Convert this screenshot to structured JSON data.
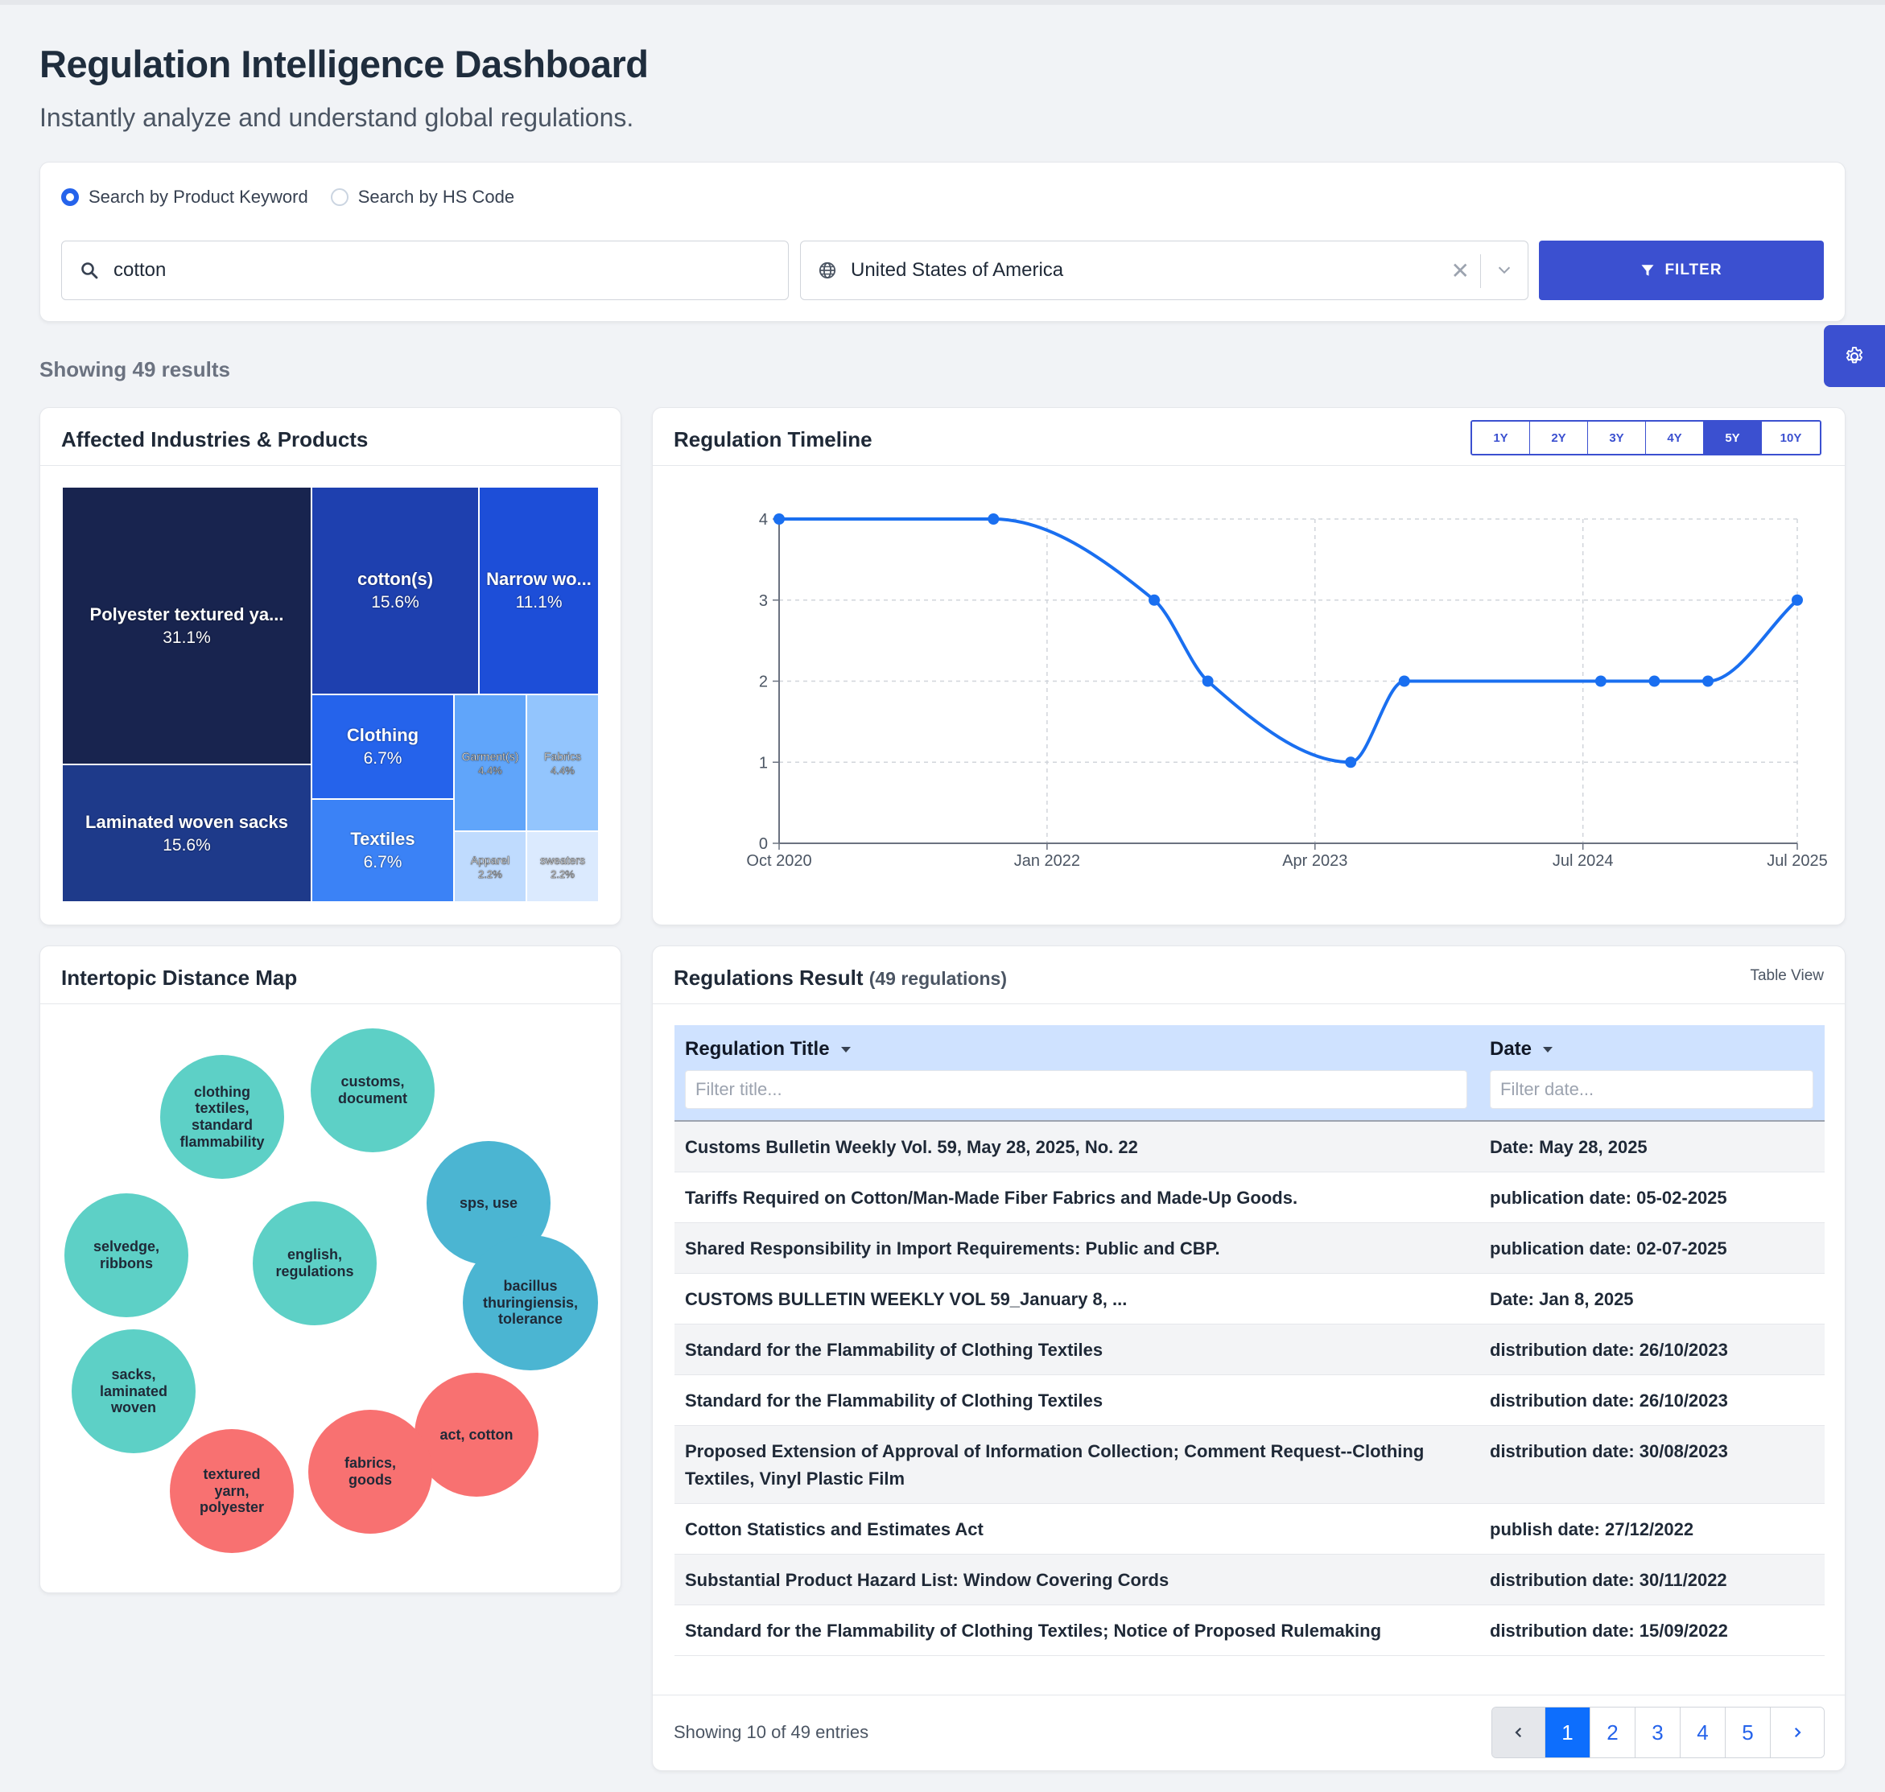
{
  "header": {
    "title": "Regulation Intelligence Dashboard",
    "subtitle": "Instantly analyze and understand global regulations."
  },
  "search": {
    "mode_keyword_label": "Search by Product Keyword",
    "mode_hs_label": "Search by HS Code",
    "selected_mode": "keyword",
    "keyword_value": "cotton",
    "country_value": "United States of America",
    "filter_label": "FILTER"
  },
  "results_summary": "Showing 49 results",
  "colors": {
    "primary": "#3b50d0",
    "accent_blue": "#0d6efd",
    "teal": "#5dd0c6",
    "blue_bubble": "#4bb5d2",
    "red_bubble": "#f87171"
  },
  "treemap": {
    "title": "Affected Industries & Products",
    "items": [
      {
        "name": "Polyester textured ya...",
        "pct": "31.1%",
        "color": "#18244f"
      },
      {
        "name": "Laminated woven sacks",
        "pct": "15.6%",
        "color": "#1e3a8a"
      },
      {
        "name": "cotton(s)",
        "pct": "15.6%",
        "color": "#1e40af"
      },
      {
        "name": "Narrow wo...",
        "pct": "11.1%",
        "color": "#1d4ed8"
      },
      {
        "name": "Clothing",
        "pct": "6.7%",
        "color": "#2563eb"
      },
      {
        "name": "Textiles",
        "pct": "6.7%",
        "color": "#3b82f6"
      },
      {
        "name": "Garment(s)",
        "pct": "4.4%",
        "color": "#60a5fa"
      },
      {
        "name": "Fabrics",
        "pct": "4.4%",
        "color": "#93c5fd"
      },
      {
        "name": "Apparel",
        "pct": "2.2%",
        "color": "#bfdbfe"
      },
      {
        "name": "sweaters",
        "pct": "2.2%",
        "color": "#dbeafe"
      }
    ]
  },
  "timeline": {
    "title": "Regulation Timeline",
    "ranges": [
      "1Y",
      "2Y",
      "3Y",
      "4Y",
      "5Y",
      "10Y"
    ],
    "active_range": "5Y"
  },
  "chart_data": {
    "type": "line",
    "title": "Regulation Timeline",
    "x_tick_labels": [
      "Oct 2020",
      "Jan 2022",
      "Apr 2023",
      "Jul 2024",
      "Jul 2025"
    ],
    "y_ticks": [
      0,
      1,
      2,
      3,
      4
    ],
    "ylim": [
      0,
      4
    ],
    "xlim": [
      "2020-10",
      "2025-07"
    ],
    "grid": true,
    "series": [
      {
        "points": [
          {
            "x": "2020-10",
            "y": 4
          },
          {
            "x": "2021-10",
            "y": 4
          },
          {
            "x": "2022-07",
            "y": 3
          },
          {
            "x": "2022-10",
            "y": 2
          },
          {
            "x": "2023-06",
            "y": 1
          },
          {
            "x": "2023-09",
            "y": 2
          },
          {
            "x": "2024-08",
            "y": 2
          },
          {
            "x": "2024-11",
            "y": 2
          },
          {
            "x": "2025-02",
            "y": 2
          },
          {
            "x": "2025-07",
            "y": 3
          }
        ],
        "color": "#1a6ff0"
      }
    ]
  },
  "topic_map": {
    "title": "Intertopic Distance Map",
    "topics": [
      {
        "label": "clothing textiles, standard flammability",
        "color": "teal"
      },
      {
        "label": "customs, document",
        "color": "teal"
      },
      {
        "label": "sps, use",
        "color": "blue"
      },
      {
        "label": "selvedge, ribbons",
        "color": "teal"
      },
      {
        "label": "english, regulations",
        "color": "teal"
      },
      {
        "label": "bacillus thuringiensis, tolerance",
        "color": "blue"
      },
      {
        "label": "sacks, laminated woven",
        "color": "teal"
      },
      {
        "label": "act, cotton",
        "color": "red"
      },
      {
        "label": "fabrics, goods",
        "color": "red"
      },
      {
        "label": "textured yarn, polyester",
        "color": "red"
      }
    ]
  },
  "regulations": {
    "title": "Regulations Result",
    "count_label": "(49 regulations)",
    "view_label": "Table View",
    "columns": [
      "Regulation Title",
      "Date"
    ],
    "filter_title_placeholder": "Filter title...",
    "filter_date_placeholder": "Filter date...",
    "rows": [
      {
        "title": "Customs Bulletin Weekly Vol. 59, May 28, 2025, No. 22",
        "date": "Date: May 28, 2025"
      },
      {
        "title": "Tariffs Required on Cotton/Man-Made Fiber Fabrics and Made-Up Goods.",
        "date": "publication date: 05-02-2025"
      },
      {
        "title": "Shared Responsibility in Import Requirements: Public and CBP.",
        "date": "publication date: 02-07-2025"
      },
      {
        "title": "CUSTOMS BULLETIN WEEKLY VOL 59_January 8, ...",
        "date": "Date: Jan 8, 2025"
      },
      {
        "title": "Standard for the Flammability of Clothing Textiles",
        "date": "distribution date: 26/10/2023"
      },
      {
        "title": "Standard for the Flammability of Clothing Textiles",
        "date": "distribution date: 26/10/2023"
      },
      {
        "title": "Proposed Extension of Approval of Information Collection; Comment Request--Clothing Textiles, Vinyl Plastic Film",
        "date": "distribution date: 30/08/2023"
      },
      {
        "title": "Cotton Statistics and Estimates Act",
        "date": "publish date: 27/12/2022"
      },
      {
        "title": "Substantial Product Hazard List: Window Covering Cords",
        "date": "distribution date: 30/11/2022"
      },
      {
        "title": "Standard for the Flammability of Clothing Textiles; Notice of Proposed Rulemaking",
        "date": "distribution date: 15/09/2022"
      }
    ],
    "entries_label": "Showing 10 of 49 entries",
    "pages": [
      "1",
      "2",
      "3",
      "4",
      "5"
    ],
    "active_page": "1"
  }
}
